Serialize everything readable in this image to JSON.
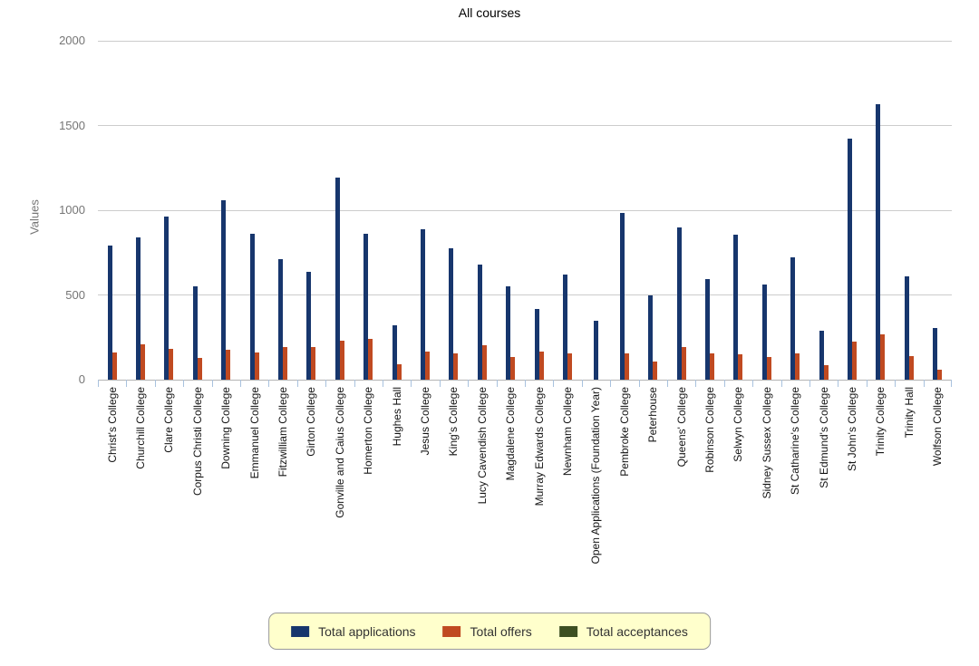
{
  "chart_data": {
    "type": "bar",
    "title": "All courses",
    "xlabel": "",
    "ylabel": "Values",
    "ylim": [
      0,
      2000
    ],
    "yticks": [
      0,
      500,
      1000,
      1500,
      2000
    ],
    "grid": true,
    "legend_position": "bottom",
    "categories": [
      "Christ's College",
      "Churchill College",
      "Clare College",
      "Corpus Christi College",
      "Downing College",
      "Emmanuel College",
      "Fitzwilliam College",
      "Girton College",
      "Gonville and Caius College",
      "Homerton College",
      "Hughes Hall",
      "Jesus College",
      "King's College",
      "Lucy Cavendish College",
      "Magdalene College",
      "Murray Edwards College",
      "Newnham College",
      "Open Applications (Foundation Year)",
      "Pembroke College",
      "Peterhouse",
      "Queens' College",
      "Robinson College",
      "Selwyn College",
      "Sidney Sussex College",
      "St Catharine's College",
      "St Edmund's College",
      "St John's College",
      "Trinity College",
      "Trinity Hall",
      "Wolfson College"
    ],
    "series": [
      {
        "name": "Total applications",
        "color": "#17366d",
        "values": [
          790,
          840,
          965,
          550,
          1060,
          860,
          710,
          635,
          1195,
          860,
          320,
          890,
          775,
          680,
          550,
          415,
          620,
          350,
          985,
          495,
          900,
          595,
          855,
          560,
          720,
          290,
          1420,
          1625,
          610,
          305
        ]
      },
      {
        "name": "Total offers",
        "color": "#c04a21",
        "values": [
          160,
          210,
          180,
          130,
          175,
          160,
          195,
          195,
          230,
          240,
          90,
          165,
          155,
          205,
          135,
          165,
          155,
          0,
          155,
          105,
          190,
          155,
          150,
          135,
          155,
          85,
          225,
          270,
          140,
          60
        ]
      },
      {
        "name": "Total acceptances",
        "color": "#3d4f22",
        "values": [
          0,
          0,
          0,
          0,
          0,
          0,
          0,
          0,
          0,
          0,
          0,
          0,
          0,
          0,
          0,
          0,
          0,
          0,
          0,
          0,
          0,
          0,
          0,
          0,
          0,
          0,
          0,
          0,
          0,
          0
        ]
      }
    ]
  },
  "colors": {
    "gridline": "#cccccc",
    "axis_baseline": "#b3b3b3",
    "category_tick": "#a9c2de",
    "y_tick_text": "#757575",
    "x_tick_text": "#141414",
    "title_text": "#000000",
    "legend_background": "#ffffcc",
    "legend_border": "#999999",
    "legend_text": "#333333"
  }
}
